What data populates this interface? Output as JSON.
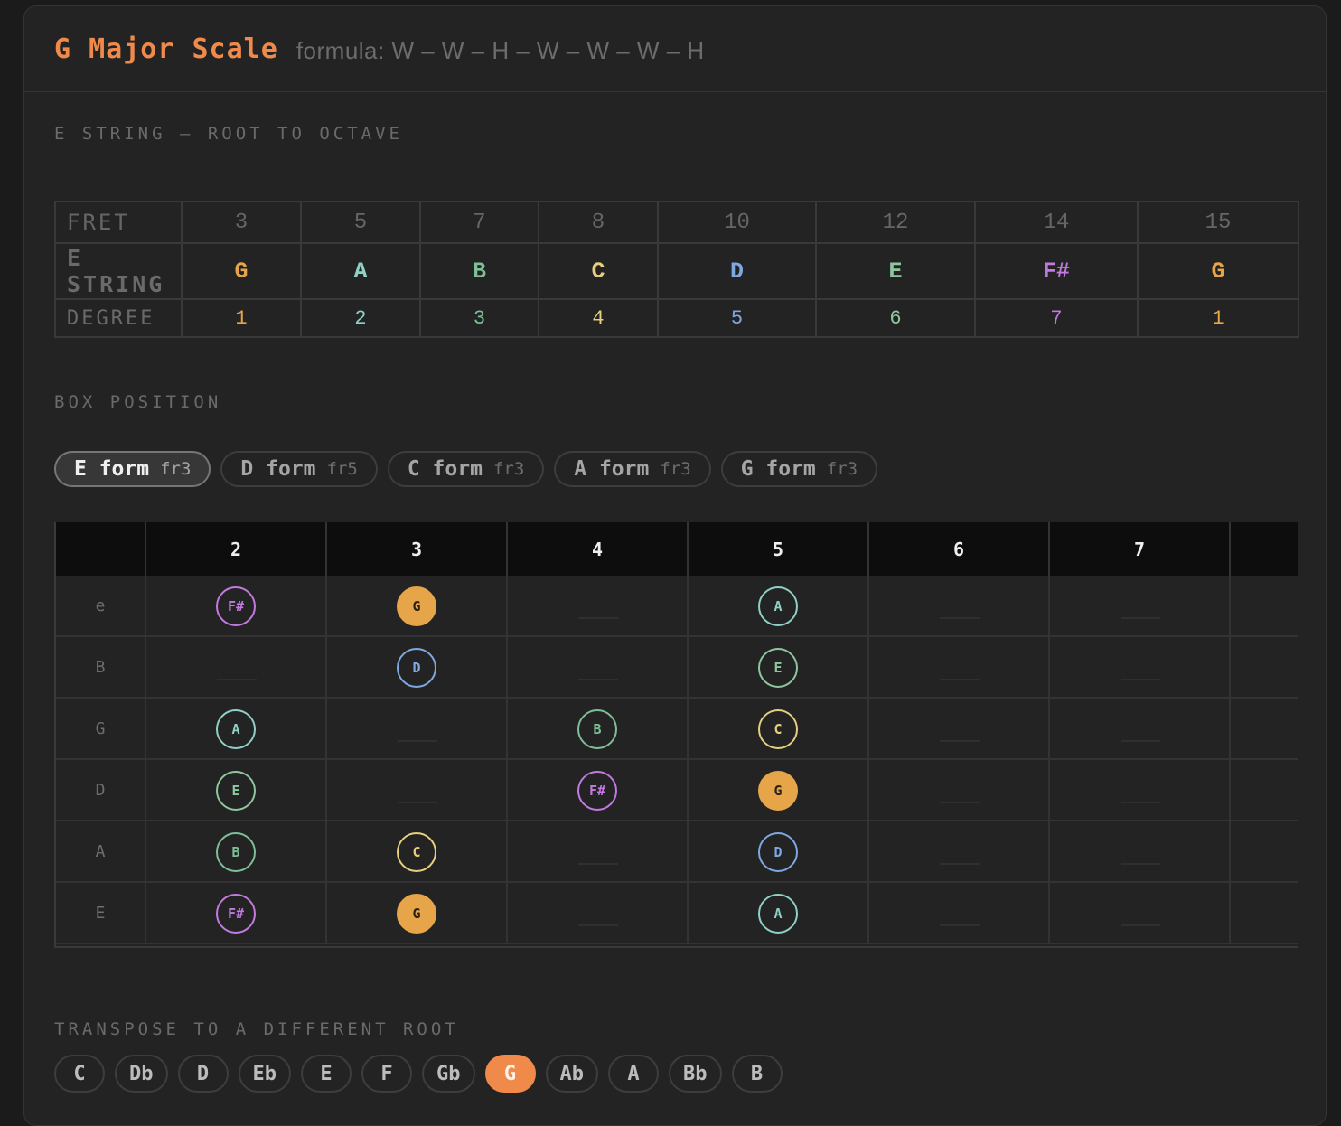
{
  "colors": {
    "accent": "#f08a4b",
    "root": "#e7a54a",
    "degree_2": "#8fd1c6",
    "degree_3": "#7ebf97",
    "degree_4": "#e6cf7f",
    "degree_5": "#7fa8e0",
    "degree_6": "#8ec79f",
    "degree_7": "#c27ae0"
  },
  "header": {
    "title": "G Major Scale",
    "formula": "formula: W – W – H – W – W – W – H"
  },
  "e_string": {
    "section_label": "E STRING – ROOT TO OCTAVE",
    "fret_label": "FRET",
    "string_label": "E STRING",
    "degree_label": "DEGREE",
    "columns": [
      {
        "fret": "3",
        "note": "G",
        "degree": "1",
        "color": "#e7a54a"
      },
      {
        "fret": "5",
        "note": "A",
        "degree": "2",
        "color": "#8fd1c6"
      },
      {
        "fret": "7",
        "note": "B",
        "degree": "3",
        "color": "#7ebf97"
      },
      {
        "fret": "8",
        "note": "C",
        "degree": "4",
        "color": "#e6cf7f"
      },
      {
        "fret": "10",
        "note": "D",
        "degree": "5",
        "color": "#7fa8e0"
      },
      {
        "fret": "12",
        "note": "E",
        "degree": "6",
        "color": "#8ec79f"
      },
      {
        "fret": "14",
        "note": "F#",
        "degree": "7",
        "color": "#c27ae0"
      },
      {
        "fret": "15",
        "note": "G",
        "degree": "1",
        "color": "#e7a54a"
      }
    ]
  },
  "box_position": {
    "section_label": "BOX POSITION",
    "forms": [
      {
        "name": "E form",
        "fret": "fr3",
        "active": true
      },
      {
        "name": "D form",
        "fret": "fr5",
        "active": false
      },
      {
        "name": "C form",
        "fret": "fr3",
        "active": false
      },
      {
        "name": "A form",
        "fret": "fr3",
        "active": false
      },
      {
        "name": "G form",
        "fret": "fr3",
        "active": false
      }
    ]
  },
  "fretboard": {
    "frets": [
      "2",
      "3",
      "4",
      "5",
      "6",
      "7"
    ],
    "strings": [
      {
        "label": "e",
        "notes": [
          "F#",
          "G",
          "",
          "A",
          "",
          ""
        ]
      },
      {
        "label": "B",
        "notes": [
          "",
          "D",
          "",
          "E",
          "",
          ""
        ]
      },
      {
        "label": "G",
        "notes": [
          "A",
          "",
          "B",
          "C",
          "",
          ""
        ]
      },
      {
        "label": "D",
        "notes": [
          "E",
          "",
          "F#",
          "G",
          "",
          ""
        ]
      },
      {
        "label": "A",
        "notes": [
          "B",
          "C",
          "",
          "D",
          "",
          ""
        ]
      },
      {
        "label": "E",
        "notes": [
          "F#",
          "G",
          "",
          "A",
          "",
          ""
        ]
      }
    ]
  },
  "transpose": {
    "section_label": "TRANSPOSE TO A DIFFERENT ROOT",
    "roots": [
      "C",
      "Db",
      "D",
      "Eb",
      "E",
      "F",
      "Gb",
      "G",
      "Ab",
      "A",
      "Bb",
      "B"
    ],
    "active": "G"
  }
}
